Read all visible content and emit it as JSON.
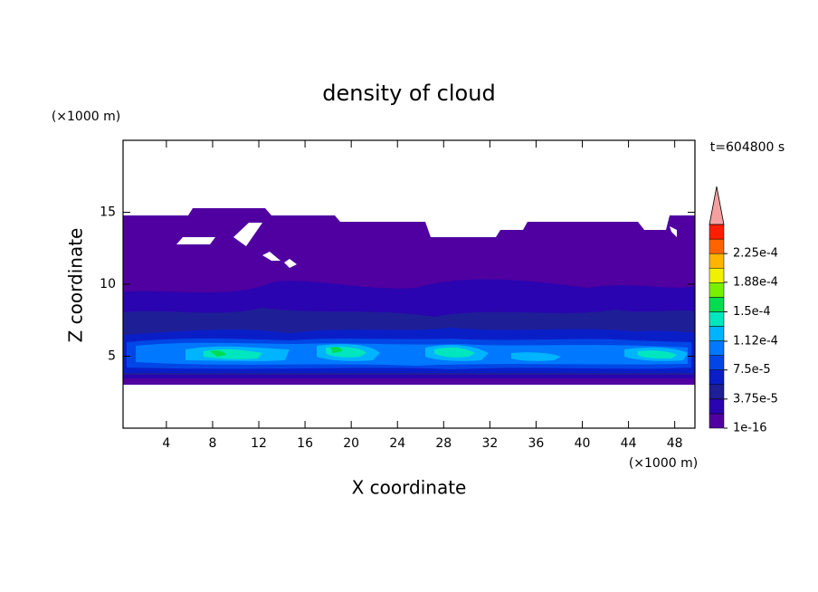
{
  "chart_data": {
    "type": "contour",
    "title": "density of cloud",
    "x_label": "X coordinate",
    "y_label": "Z coordinate",
    "x_unit": "(×1000 m)",
    "y_unit": "(×1000 m)",
    "time_label": "t=604800 s",
    "xlim": [
      0.25,
      49.75
    ],
    "ylim": [
      0,
      20
    ],
    "xticks": [
      4,
      8,
      12,
      16,
      20,
      24,
      28,
      32,
      36,
      40,
      44,
      48
    ],
    "yticks": [
      5,
      10,
      15
    ],
    "colorbar": {
      "colors": [
        "#5000a0",
        "#2a04b0",
        "#1e1e96",
        "#0a1ec8",
        "#0046e6",
        "#0078ff",
        "#00b4ff",
        "#00e6be",
        "#00dc50",
        "#78f000",
        "#f0f000",
        "#ffb400",
        "#ff6400",
        "#ff1e00"
      ],
      "extend_color": "#f5a0a0",
      "ticks": [
        {
          "value": 1e-16,
          "label": "1e-16"
        },
        {
          "value": 3.75e-05,
          "label": "3.75e-5"
        },
        {
          "value": 7.5e-05,
          "label": "7.5e-5"
        },
        {
          "value": 0.000112,
          "label": "1.12e-4"
        },
        {
          "value": 0.00015,
          "label": "1.5e-4"
        },
        {
          "value": 0.000188,
          "label": "1.88e-4"
        },
        {
          "value": 0.000225,
          "label": "2.25e-4"
        }
      ],
      "lim": [
        0,
        0.0002625
      ]
    }
  }
}
